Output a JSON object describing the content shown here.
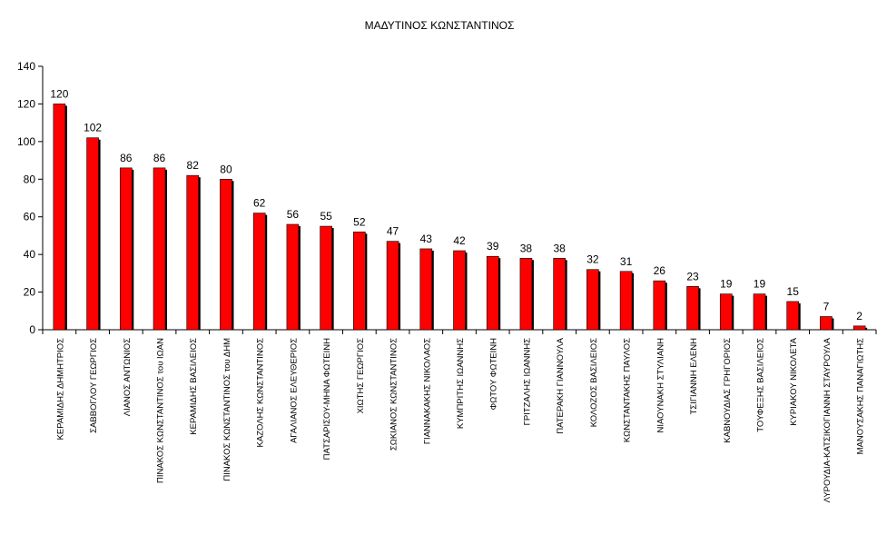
{
  "chart_data": {
    "type": "bar",
    "title": "ΜΑΔΥΤΙΝΟΣ ΚΩΝΣΤΑΝΤΙΝΟΣ",
    "xlabel": "",
    "ylabel": "",
    "ylim": [
      0,
      140
    ],
    "yticks": [
      0,
      20,
      40,
      60,
      80,
      100,
      120,
      140
    ],
    "grid": false,
    "bar_color": "#FF0000",
    "shadow_color": "#000000",
    "categories": [
      "ΚΕΡΑΜΙΔΗΣ ΔΗΜΗΤΡΙΟΣ",
      "ΣΑΒΒΟΓΛΟΥ ΓΕΩΡΓΙΟΣ",
      "ΛΙΑΝΟΣ ΑΝΤΩΝΙΟΣ",
      "ΠΙΝΑΚΟΣ ΚΩΝΣΤΑΝΤΙΝΟΣ του ΙΩΑΝ",
      "ΚΕΡΑΜΙΔΗΣ ΒΑΣΙΛΕΙΟΣ",
      "ΠΙΝΑΚΟΣ ΚΩΝΣΤΑΝΤΙΝΟΣ του ΔΗΜ",
      "ΚΑΖΟΛΗΣ ΚΩΝΣΤΑΝΤΙΝΟΣ",
      "ΑΓΑΛΙΑΝΟΣ ΕΛΕΥΘΕΡΙΟΣ",
      "ΠΑΤΣΑΡΙΣΟΥ-ΜΗΝΑ ΦΩΤΕΙΝΗ",
      "ΧΙΩΤΗΣ ΓΕΩΡΓΙΟΣ",
      "ΣΩΚΙΑΝΟΣ ΚΩΝΣΤΑΝΤΙΝΟΣ",
      "ΓΙΑΝΝΑΚΑΚΗΣ ΝΙΚΟΛΑΟΣ",
      "ΚΥΜΠΡΙΤΗΣ ΙΩΑΝΝΗΣ",
      "ΦΩΤΟΥ ΦΩΤΕΙΝΗ",
      "ΓΡΙΤΖΑΛΗΣ ΙΩΑΝΝΗΣ",
      "ΠΑΤΕΡΑΚΗ ΓΙΑΝΝΟΥΛΑ",
      "ΚΟΛΟΖΟΣ ΒΑΣΙΛΕΙΟΣ",
      "ΚΩΝΣΤΑΝΤΑΚΗΣ ΠΑΥΛΟΣ",
      "ΝΙΑΟΥΝΑΚΗ ΣΤΥΛΙΑΝΗ",
      "ΤΣΙΓΙΑΝΝΗ ΕΛΕΝΗ",
      "ΚΑΒΝΟΥΔΙΑΣ ΓΡΗΓΟΡΙΟΣ",
      "ΤΟΥΦΕΞΗΣ ΒΑΣΙΛΕΙΟΣ",
      "ΚΥΡΙΑΚΟΥ ΝΙΚΟΛΕΤΑ",
      "ΛΥΡΟΥΔΙΑ-ΚΑΤΣΙΚΟΓΙΑΝΝΗ ΣΤΑΥΡΟΥΛΑ",
      "ΜΑΝΟΥΣΑΚΗΣ ΠΑΝΑΓΙΩΤΗΣ"
    ],
    "values": [
      120,
      102,
      86,
      86,
      82,
      80,
      62,
      56,
      55,
      52,
      47,
      43,
      42,
      39,
      38,
      38,
      32,
      31,
      26,
      23,
      19,
      19,
      15,
      7,
      2
    ],
    "data_labels": true
  }
}
